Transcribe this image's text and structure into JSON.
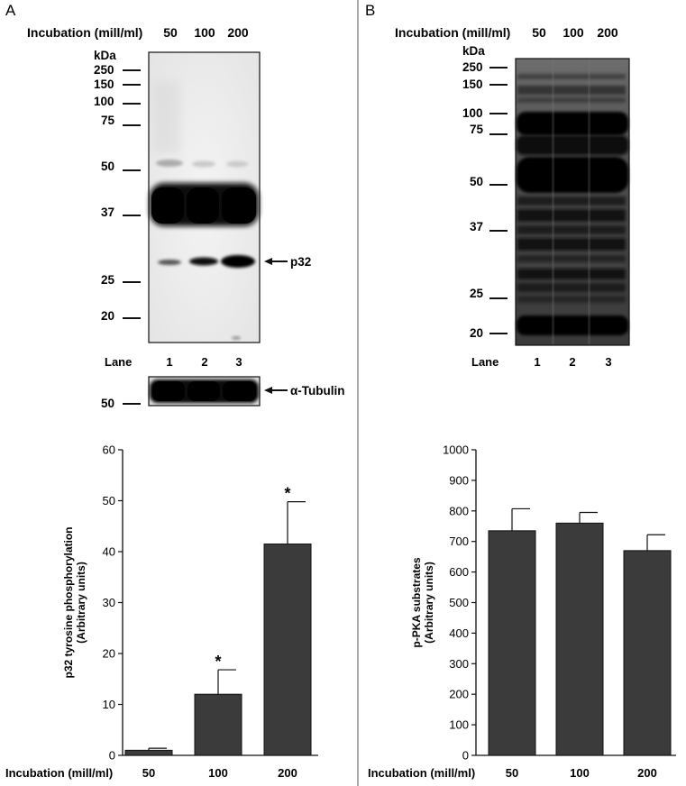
{
  "panels": [
    {
      "letter": "A",
      "header_label": "Incubation (mill/ml)",
      "header_concs": [
        "50",
        "100",
        "200"
      ],
      "kda_label": "kDa",
      "markers": [
        "250",
        "150",
        "100",
        "75",
        "50",
        "37",
        "25",
        "20"
      ],
      "band_annotation": "p32",
      "lane_label": "Lane",
      "lanes": [
        "1",
        "2",
        "3"
      ],
      "loading_marker": "50",
      "loading_label": "α-Tubulin"
    },
    {
      "letter": "B",
      "header_label": "Incubation (mill/ml)",
      "header_concs": [
        "50",
        "100",
        "200"
      ],
      "kda_label": "kDa",
      "markers": [
        "250",
        "150",
        "100",
        "75",
        "50",
        "37",
        "25",
        "20"
      ],
      "lane_label": "Lane",
      "lanes": [
        "1",
        "2",
        "3"
      ]
    }
  ],
  "chart_data": [
    {
      "type": "bar",
      "categories": [
        "50",
        "100",
        "200"
      ],
      "values": [
        1.0,
        12.0,
        41.5
      ],
      "errors": [
        0.4,
        4.8,
        8.3
      ],
      "significance": [
        "",
        "*",
        "*"
      ],
      "xlabel": "Incubation (mill/ml)",
      "ylabel": [
        "p32 tyrosine phosphorylation",
        "(Arbitrary units)"
      ],
      "ylim": [
        0,
        60
      ],
      "yticks": [
        "0",
        "10",
        "20",
        "30",
        "40",
        "50",
        "60"
      ],
      "bar_color": "#3b3b3b",
      "grid": false
    },
    {
      "type": "bar",
      "categories": [
        "50",
        "100",
        "200"
      ],
      "values": [
        735,
        760,
        670
      ],
      "errors": [
        72,
        35,
        52
      ],
      "significance": [
        "",
        "",
        ""
      ],
      "xlabel": "Incubation (mill/ml)",
      "ylabel": [
        "p-PKA substrates",
        "(Arbitrary units)"
      ],
      "ylim": [
        0,
        1000
      ],
      "yticks": [
        "0",
        "100",
        "200",
        "300",
        "400",
        "500",
        "600",
        "700",
        "800",
        "900",
        "1000"
      ],
      "bar_color": "#3b3b3b",
      "grid": false
    }
  ]
}
